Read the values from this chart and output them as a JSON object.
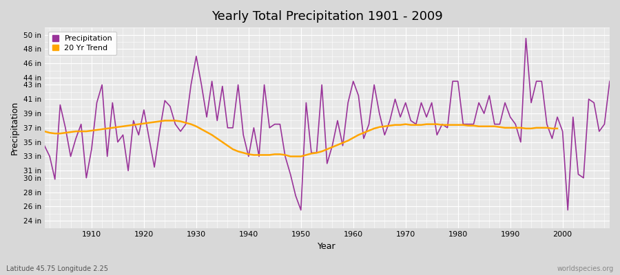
{
  "title": "Yearly Total Precipitation 1901 - 2009",
  "xlabel": "Year",
  "ylabel": "Precipitation",
  "subtitle": "Latitude 45.75 Longitude 2.25",
  "watermark": "worldspecies.org",
  "precip_color": "#993399",
  "trend_color": "#FFA500",
  "fig_bg_color": "#D8D8D8",
  "plot_bg_color": "#E8E8E8",
  "years": [
    1901,
    1902,
    1903,
    1904,
    1905,
    1906,
    1907,
    1908,
    1909,
    1910,
    1911,
    1912,
    1913,
    1914,
    1915,
    1916,
    1917,
    1918,
    1919,
    1920,
    1921,
    1922,
    1923,
    1924,
    1925,
    1926,
    1927,
    1928,
    1929,
    1930,
    1931,
    1932,
    1933,
    1934,
    1935,
    1936,
    1937,
    1938,
    1939,
    1940,
    1941,
    1942,
    1943,
    1944,
    1945,
    1946,
    1947,
    1948,
    1949,
    1950,
    1951,
    1952,
    1953,
    1954,
    1955,
    1956,
    1957,
    1958,
    1959,
    1960,
    1961,
    1962,
    1963,
    1964,
    1965,
    1966,
    1967,
    1968,
    1969,
    1970,
    1971,
    1972,
    1973,
    1974,
    1975,
    1976,
    1977,
    1978,
    1979,
    1980,
    1981,
    1982,
    1983,
    1984,
    1985,
    1986,
    1987,
    1988,
    1989,
    1990,
    1991,
    1992,
    1993,
    1994,
    1995,
    1996,
    1997,
    1998,
    1999,
    2000,
    2001,
    2002,
    2003,
    2004,
    2005,
    2006,
    2007,
    2008,
    2009
  ],
  "precipitation": [
    34.5,
    33.0,
    29.8,
    40.2,
    37.0,
    33.0,
    35.5,
    37.5,
    30.0,
    34.0,
    40.5,
    43.0,
    33.0,
    40.5,
    35.0,
    36.0,
    31.0,
    38.0,
    36.0,
    39.5,
    35.5,
    31.5,
    36.5,
    40.8,
    40.0,
    37.5,
    36.5,
    37.5,
    43.0,
    47.0,
    43.0,
    38.5,
    43.5,
    38.0,
    42.8,
    37.0,
    37.0,
    43.0,
    36.0,
    33.0,
    37.0,
    33.0,
    43.0,
    37.0,
    37.5,
    37.5,
    33.0,
    30.5,
    27.5,
    25.5,
    40.5,
    33.5,
    33.5,
    43.0,
    32.0,
    34.5,
    38.0,
    34.5,
    40.5,
    43.5,
    41.5,
    35.5,
    37.5,
    43.0,
    39.0,
    36.0,
    38.0,
    41.0,
    38.5,
    40.5,
    38.0,
    37.5,
    40.5,
    38.5,
    40.5,
    36.0,
    37.5,
    37.0,
    43.5,
    43.5,
    37.5,
    37.5,
    37.5,
    40.5,
    39.0,
    41.5,
    37.5,
    37.5,
    40.5,
    38.5,
    37.5,
    35.0,
    49.5,
    40.5,
    43.5,
    43.5,
    37.5,
    35.5,
    38.5,
    36.5,
    25.5,
    38.5,
    30.5,
    30.0,
    41.0,
    40.5,
    36.5,
    37.5,
    43.5
  ],
  "trend": [
    36.5,
    36.3,
    36.2,
    36.2,
    36.3,
    36.4,
    36.5,
    36.5,
    36.5,
    36.6,
    36.7,
    36.8,
    36.9,
    37.0,
    37.1,
    37.2,
    37.3,
    37.4,
    37.5,
    37.6,
    37.7,
    37.8,
    37.9,
    38.0,
    38.0,
    38.0,
    37.9,
    37.7,
    37.5,
    37.2,
    36.8,
    36.4,
    36.0,
    35.5,
    35.0,
    34.5,
    34.0,
    33.7,
    33.5,
    33.3,
    33.2,
    33.2,
    33.2,
    33.2,
    33.3,
    33.3,
    33.2,
    33.0,
    33.0,
    33.0,
    33.2,
    33.4,
    33.5,
    33.7,
    34.0,
    34.3,
    34.6,
    34.9,
    35.2,
    35.6,
    36.0,
    36.3,
    36.6,
    36.9,
    37.1,
    37.2,
    37.3,
    37.4,
    37.4,
    37.5,
    37.4,
    37.4,
    37.4,
    37.5,
    37.5,
    37.5,
    37.4,
    37.4,
    37.4,
    37.4,
    37.4,
    37.3,
    37.3,
    37.2,
    37.2,
    37.2,
    37.2,
    37.1,
    37.0,
    37.0,
    37.0,
    37.0,
    36.9,
    36.9,
    37.0,
    37.0,
    37.0,
    36.9,
    36.9
  ],
  "ytick_values": [
    24,
    26,
    28,
    30,
    31,
    33,
    35,
    37,
    39,
    41,
    43,
    44,
    46,
    48,
    50
  ],
  "xtick_values": [
    1910,
    1920,
    1930,
    1940,
    1950,
    1960,
    1970,
    1980,
    1990,
    2000
  ],
  "xlim": [
    1901,
    2009
  ],
  "ylim": [
    23,
    51
  ]
}
